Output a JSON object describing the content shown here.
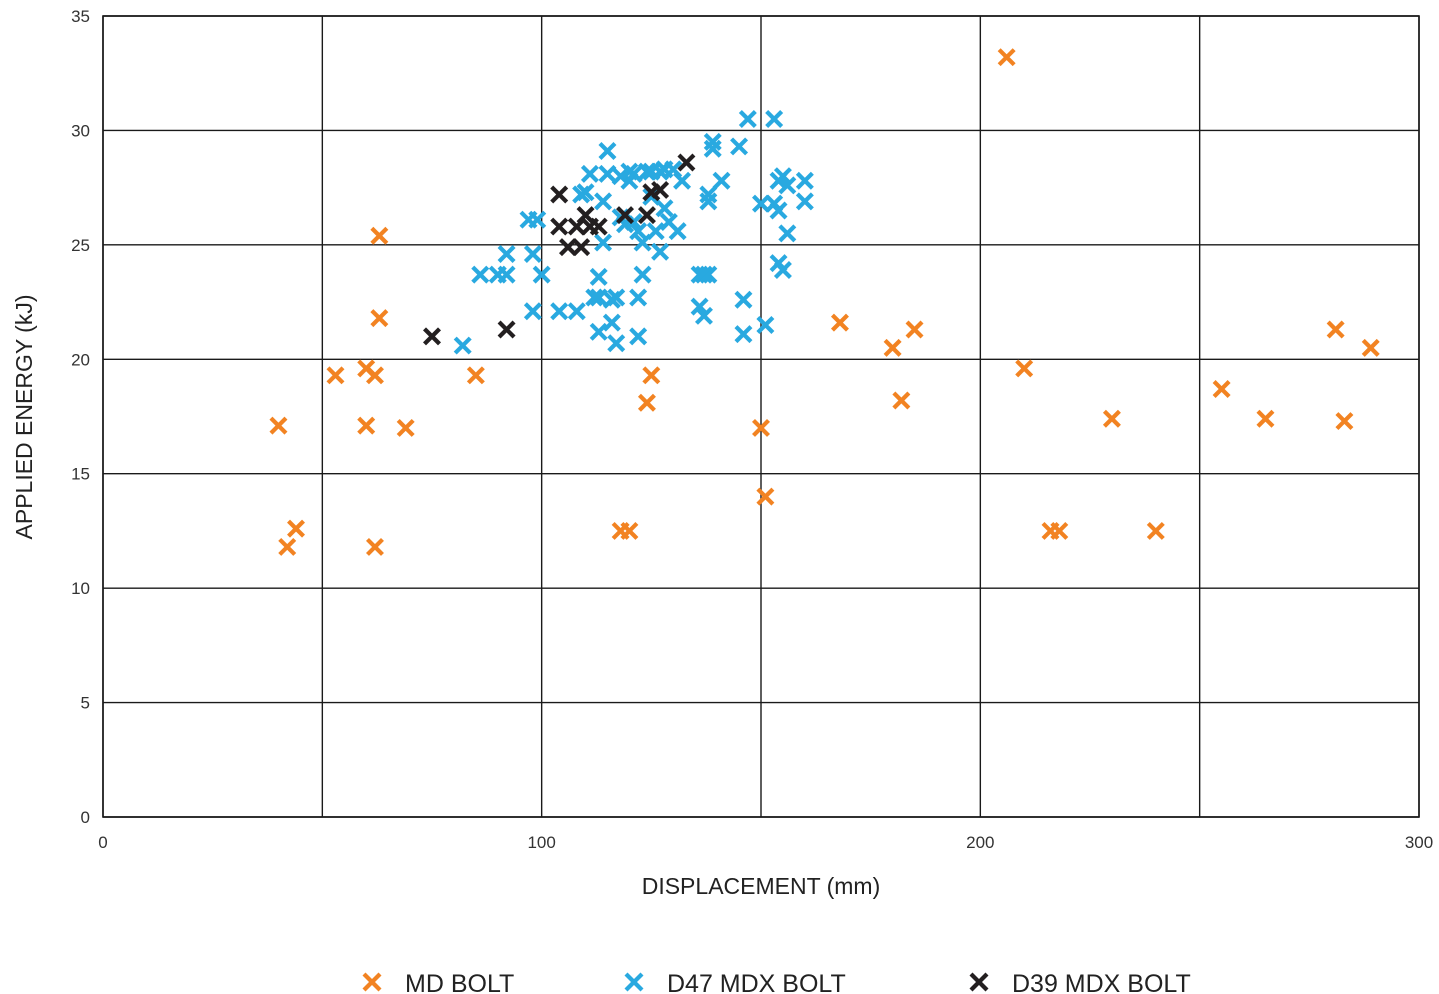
{
  "chart_data": {
    "type": "scatter",
    "xlabel": "DISPLACEMENT (mm)",
    "ylabel": "APPLIED ENERGY (kJ)",
    "xlim": [
      0,
      300
    ],
    "ylim": [
      0,
      35
    ],
    "x_ticks": [
      0,
      100,
      200,
      300
    ],
    "x_gridlines": [
      0,
      50,
      100,
      150,
      200,
      250,
      300
    ],
    "y_ticks": [
      0,
      5,
      10,
      15,
      20,
      25,
      30,
      35
    ],
    "grid": true,
    "legend_position": "bottom",
    "series": [
      {
        "name": "MD BOLT",
        "color": "#f28322",
        "points": [
          [
            40,
            17.1
          ],
          [
            42,
            11.8
          ],
          [
            44,
            12.6
          ],
          [
            53,
            19.3
          ],
          [
            60,
            19.6
          ],
          [
            60,
            17.1
          ],
          [
            62,
            19.3
          ],
          [
            62,
            11.8
          ],
          [
            63,
            25.4
          ],
          [
            63,
            21.8
          ],
          [
            69,
            17.0
          ],
          [
            85,
            19.3
          ],
          [
            118,
            12.5
          ],
          [
            120,
            12.5
          ],
          [
            124,
            18.1
          ],
          [
            125,
            19.3
          ],
          [
            150,
            17.0
          ],
          [
            151,
            14.0
          ],
          [
            168,
            21.6
          ],
          [
            180,
            20.5
          ],
          [
            182,
            18.2
          ],
          [
            185,
            21.3
          ],
          [
            206,
            33.2
          ],
          [
            210,
            19.6
          ],
          [
            216,
            12.5
          ],
          [
            218,
            12.5
          ],
          [
            230,
            17.4
          ],
          [
            240,
            12.5
          ],
          [
            255,
            18.7
          ],
          [
            265,
            17.4
          ],
          [
            281,
            21.3
          ],
          [
            283,
            17.3
          ],
          [
            289,
            20.5
          ]
        ]
      },
      {
        "name": "D47 MDX BOLT",
        "color": "#29a9e0",
        "points": [
          [
            82,
            20.6
          ],
          [
            86,
            23.7
          ],
          [
            90,
            23.7
          ],
          [
            92,
            23.7
          ],
          [
            92,
            24.6
          ],
          [
            97,
            26.1
          ],
          [
            98,
            24.6
          ],
          [
            98,
            22.1
          ],
          [
            99,
            26.1
          ],
          [
            100,
            23.7
          ],
          [
            104,
            22.1
          ],
          [
            108,
            22.1
          ],
          [
            109,
            27.2
          ],
          [
            110,
            27.3
          ],
          [
            111,
            28.1
          ],
          [
            112,
            22.7
          ],
          [
            113,
            22.7
          ],
          [
            113,
            21.2
          ],
          [
            113,
            23.6
          ],
          [
            114,
            25.1
          ],
          [
            114,
            26.9
          ],
          [
            115,
            29.1
          ],
          [
            115,
            28.1
          ],
          [
            116,
            22.6
          ],
          [
            116,
            21.6
          ],
          [
            117,
            20.7
          ],
          [
            117,
            22.7
          ],
          [
            118,
            28.0
          ],
          [
            118,
            26.2
          ],
          [
            119,
            25.9
          ],
          [
            120,
            27.8
          ],
          [
            120,
            28.2
          ],
          [
            121,
            28.1
          ],
          [
            121,
            26.0
          ],
          [
            122,
            25.6
          ],
          [
            122,
            22.7
          ],
          [
            122,
            21.0
          ],
          [
            123,
            25.1
          ],
          [
            123,
            23.7
          ],
          [
            124,
            28.2
          ],
          [
            125,
            28.2
          ],
          [
            125,
            27.1
          ],
          [
            126,
            25.6
          ],
          [
            127,
            28.2
          ],
          [
            127,
            24.7
          ],
          [
            128,
            28.3
          ],
          [
            128,
            26.6
          ],
          [
            129,
            26.0
          ],
          [
            130,
            28.3
          ],
          [
            131,
            25.6
          ],
          [
            132,
            27.8
          ],
          [
            136,
            23.7
          ],
          [
            136,
            22.3
          ],
          [
            137,
            21.9
          ],
          [
            137,
            23.7
          ],
          [
            138,
            27.2
          ],
          [
            138,
            23.7
          ],
          [
            138,
            26.9
          ],
          [
            139,
            29.5
          ],
          [
            139,
            29.2
          ],
          [
            141,
            27.8
          ],
          [
            145,
            29.3
          ],
          [
            146,
            22.6
          ],
          [
            146,
            21.1
          ],
          [
            147,
            30.5
          ],
          [
            150,
            26.8
          ],
          [
            151,
            21.5
          ],
          [
            153,
            30.5
          ],
          [
            153,
            26.8
          ],
          [
            154,
            26.5
          ],
          [
            154,
            27.8
          ],
          [
            154,
            24.2
          ],
          [
            155,
            23.9
          ],
          [
            155,
            28.0
          ],
          [
            156,
            27.6
          ],
          [
            156,
            25.5
          ],
          [
            160,
            27.8
          ],
          [
            160,
            26.9
          ]
        ]
      },
      {
        "name": "D39 MDX BOLT",
        "color": "#231f20",
        "points": [
          [
            75,
            21.0
          ],
          [
            92,
            21.3
          ],
          [
            104,
            27.2
          ],
          [
            104,
            25.8
          ],
          [
            106,
            24.9
          ],
          [
            108,
            25.8
          ],
          [
            109,
            24.9
          ],
          [
            110,
            26.3
          ],
          [
            111,
            25.8
          ],
          [
            113,
            25.8
          ],
          [
            119,
            26.3
          ],
          [
            124,
            26.3
          ],
          [
            125,
            27.3
          ],
          [
            127,
            27.4
          ],
          [
            133,
            28.6
          ]
        ]
      }
    ]
  }
}
